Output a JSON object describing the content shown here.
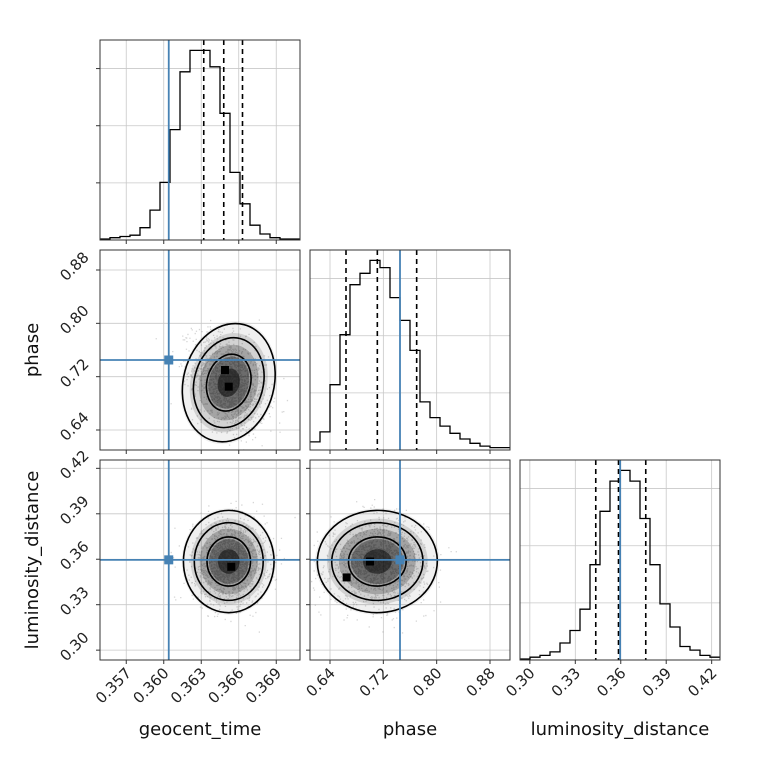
{
  "chart_data": {
    "type": "corner",
    "parameters": [
      "geocent_time",
      "phase",
      "luminosity_distance"
    ],
    "truth_color": "#4682b4",
    "truths": {
      "geocent_time": 0.3604,
      "phase": 0.745,
      "luminosity_distance": 0.3596
    },
    "quantiles": {
      "geocent_time": [
        0.3632,
        0.3648,
        0.3663
      ],
      "phase": [
        0.664,
        0.711,
        0.77
      ],
      "luminosity_distance": [
        0.3435,
        0.3585,
        0.3765
      ]
    },
    "axes": {
      "geocent_time": {
        "range": [
          0.3549,
          0.3709
        ],
        "ticks": [
          0.357,
          0.36,
          0.363,
          0.366,
          0.369
        ],
        "tick_labels": [
          "0.357",
          "0.360",
          "0.363",
          "0.366",
          "0.369"
        ]
      },
      "phase": {
        "range": [
          0.61,
          0.91
        ],
        "ticks": [
          0.64,
          0.72,
          0.8,
          0.88
        ],
        "tick_labels": [
          "0.64",
          "0.72",
          "0.80",
          "0.88"
        ]
      },
      "luminosity_distance": {
        "range": [
          0.2935,
          0.4255
        ],
        "ticks": [
          0.3,
          0.33,
          0.36,
          0.39,
          0.42
        ],
        "tick_labels": [
          "0.30",
          "0.33",
          "0.36",
          "0.39",
          "0.42"
        ]
      }
    },
    "histograms": {
      "geocent_time": {
        "x0": 0.3549,
        "width": 0.0008,
        "counts": [
          0,
          1,
          2,
          3,
          9,
          23,
          45,
          87,
          133,
          150,
          150,
          137,
          100,
          53,
          28,
          11,
          4,
          1,
          0,
          0
        ]
      },
      "phase": {
        "x0": 0.61,
        "width": 0.015,
        "counts": [
          5,
          12,
          45,
          80,
          115,
          123,
          132,
          127,
          106,
          90,
          69,
          33,
          22,
          16,
          11,
          7,
          4,
          2,
          1,
          1
        ]
      },
      "luminosity_distance": {
        "x0": 0.2935,
        "width": 0.0066,
        "counts": [
          0,
          1,
          2,
          4,
          9,
          16,
          28,
          53,
          83,
          100,
          106,
          100,
          79,
          53,
          31,
          18,
          7,
          5,
          2,
          1
        ]
      }
    },
    "contours": {
      "phase_vs_geocent_time": {
        "center": [
          0.3652,
          0.711
        ],
        "sigma": [
          0.00145,
          0.036
        ],
        "rho": -0.35,
        "modes": [
          [
            0.3649,
            0.73
          ],
          [
            0.3652,
            0.705
          ]
        ]
      },
      "luminosity_distance_vs_geocent_time": {
        "center": [
          0.3652,
          0.3585
        ],
        "sigma": [
          0.00145,
          0.0135
        ],
        "rho": 0.0,
        "modes": [
          [
            0.3654,
            0.355
          ]
        ]
      },
      "luminosity_distance_vs_phase": {
        "center": [
          0.711,
          0.3585
        ],
        "sigma": [
          0.036,
          0.0135
        ],
        "rho": 0.05,
        "modes": [
          [
            0.7,
            0.3585
          ],
          [
            0.665,
            0.348
          ]
        ]
      }
    },
    "xlabels": [
      "geocent_time",
      "phase",
      "luminosity_distance"
    ],
    "ylabels": [
      "phase",
      "luminosity_distance"
    ],
    "grid": true,
    "legend": "none"
  }
}
